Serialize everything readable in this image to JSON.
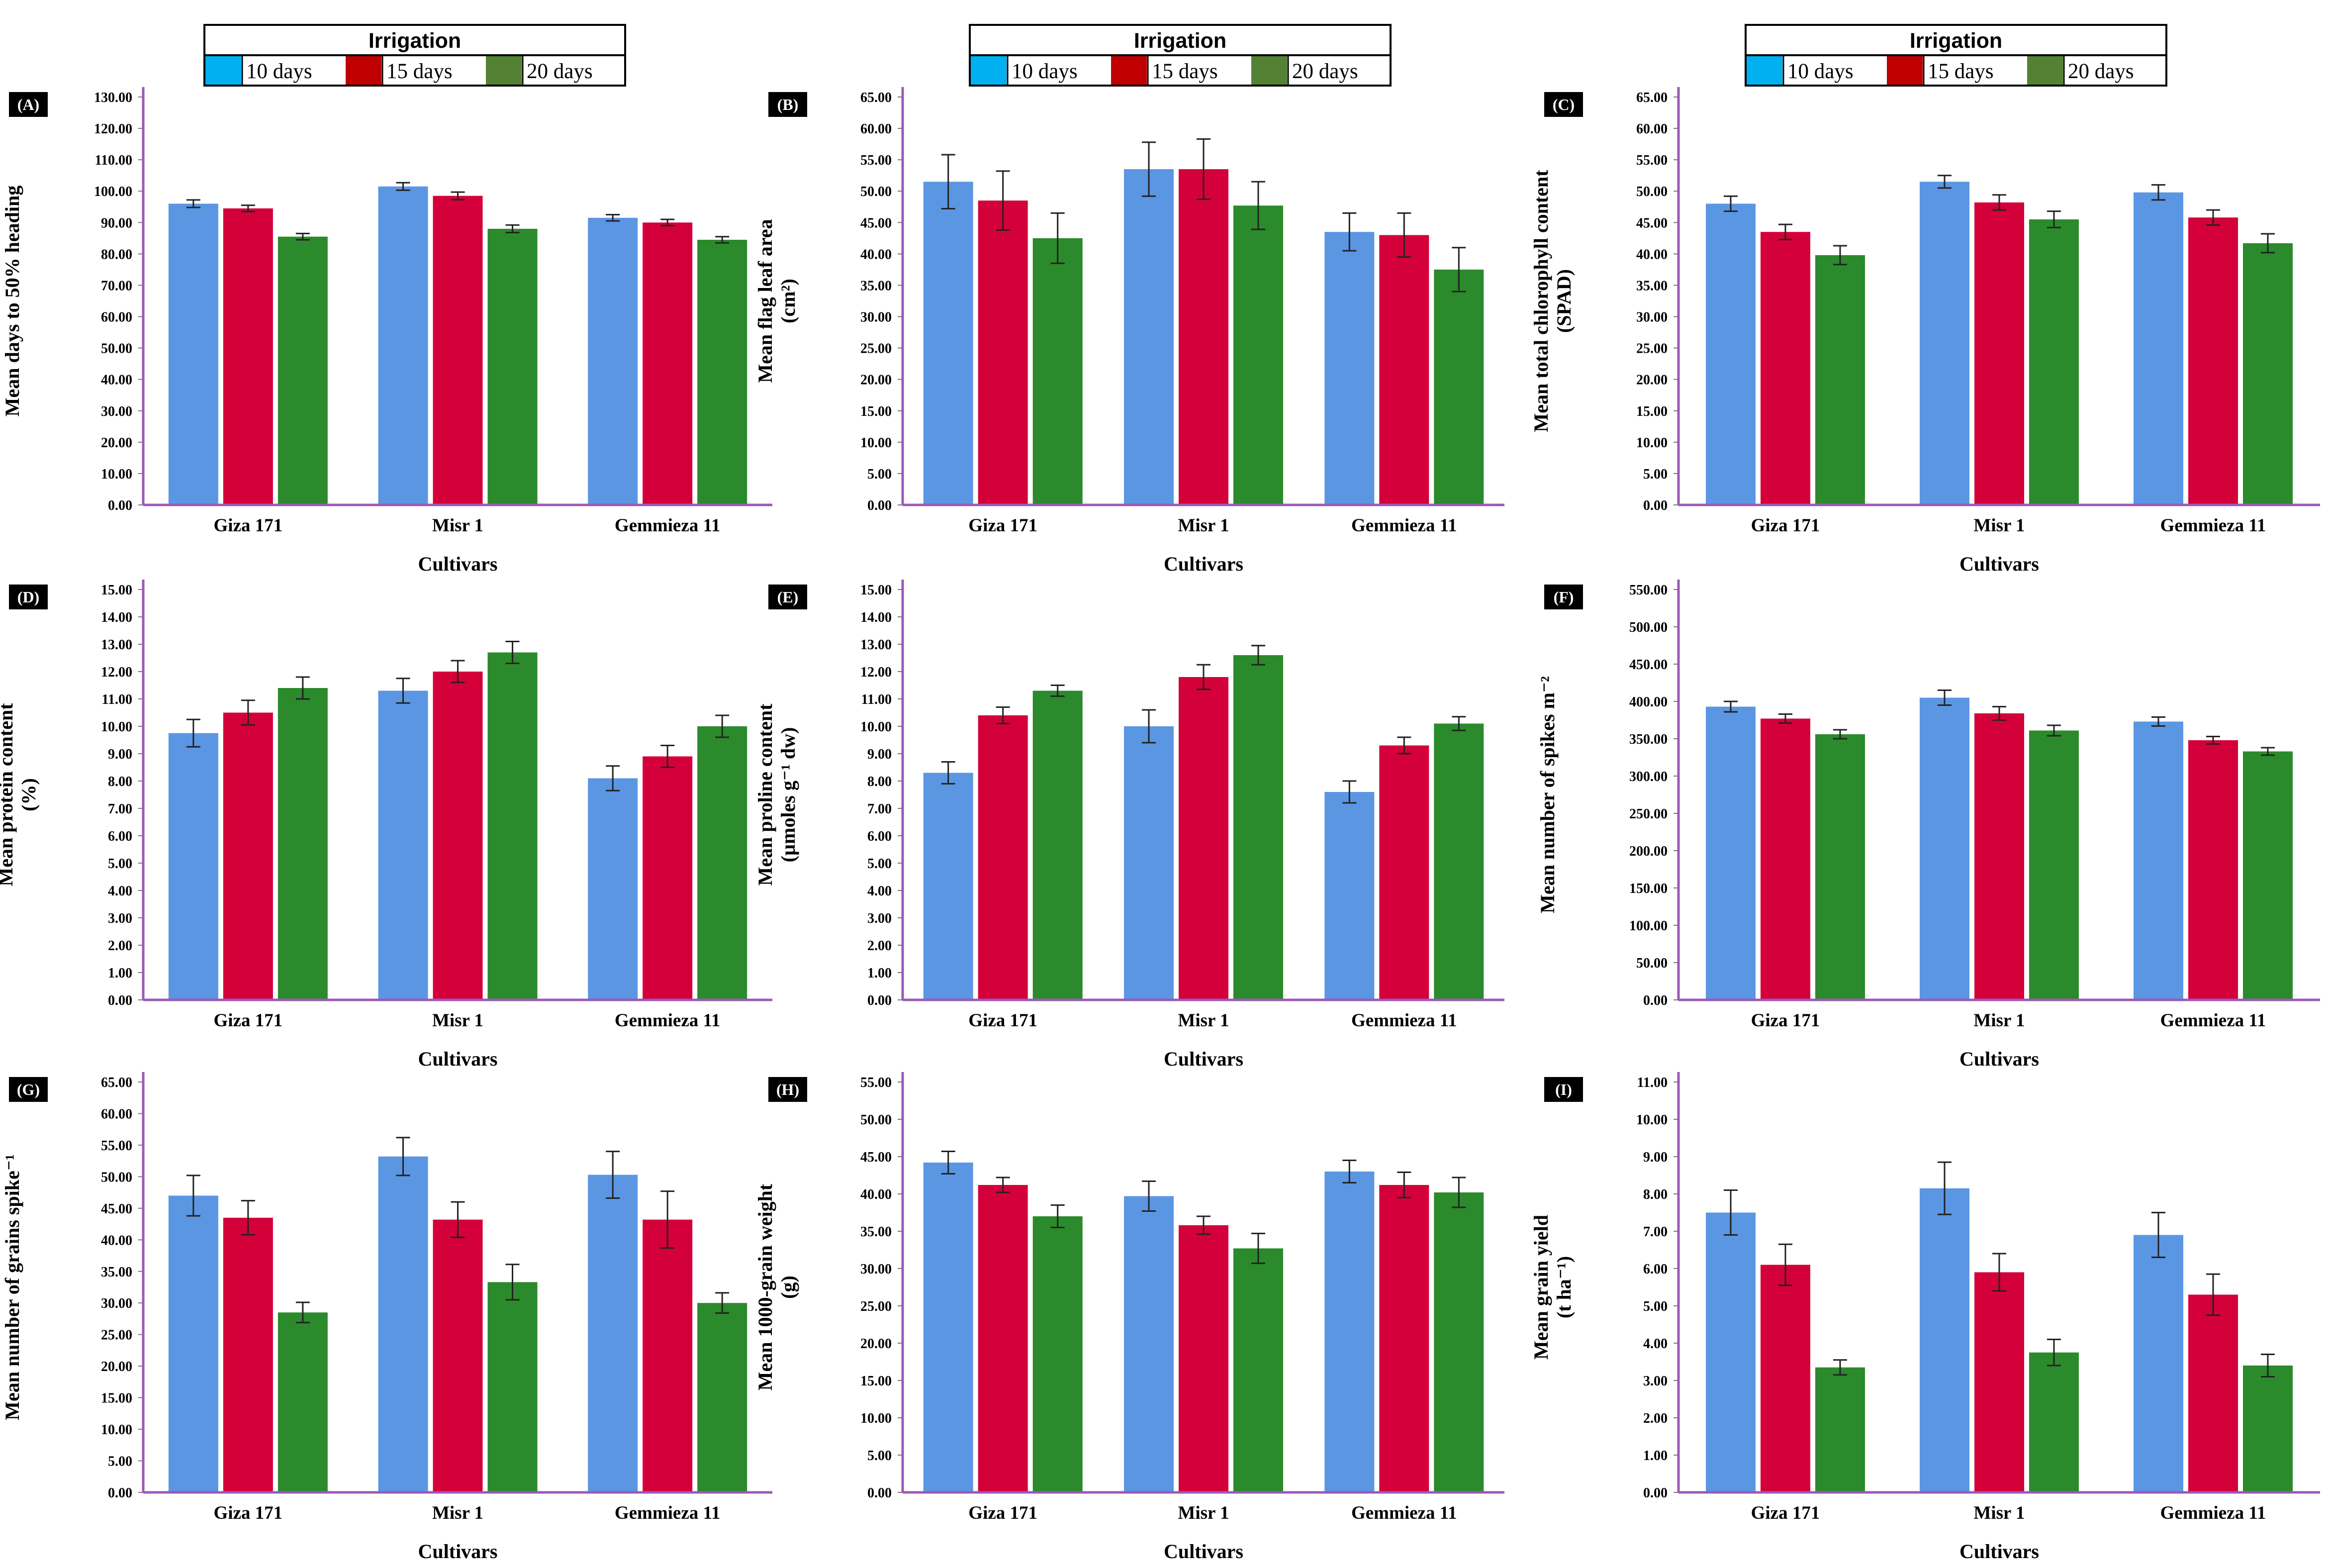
{
  "legend": {
    "title": "Irrigation",
    "items": [
      {
        "label": "10 days",
        "color": "#00b0f0"
      },
      {
        "label": "15 days",
        "color": "#c00000"
      },
      {
        "label": "20 days",
        "color": "#548235"
      }
    ]
  },
  "bar_colors": [
    "#5b96e3",
    "#d4003a",
    "#2b8a2b"
  ],
  "axis_color": "#9b59b6",
  "chart_data": [
    {
      "type": "bar",
      "panel": "(A)",
      "ylabel": [
        "Mean days to 50% heading"
      ],
      "xlabel": "Cultivars",
      "categories": [
        "Giza 171",
        "Misr 1",
        "Gemmieza 11"
      ],
      "ylim": [
        0,
        130
      ],
      "ystep": 10,
      "series": [
        {
          "name": "10 days",
          "values": [
            96.0,
            101.5,
            91.5
          ],
          "errors": [
            1.2,
            1.2,
            1.0
          ]
        },
        {
          "name": "15 days",
          "values": [
            94.5,
            98.5,
            90.0
          ],
          "errors": [
            1.0,
            1.2,
            1.0
          ]
        },
        {
          "name": "20 days",
          "values": [
            85.5,
            88.0,
            84.5
          ],
          "errors": [
            1.0,
            1.2,
            1.0
          ]
        }
      ]
    },
    {
      "type": "bar",
      "panel": "(B)",
      "ylabel": [
        "Mean flag leaf area",
        "(cm²)"
      ],
      "xlabel": "Cultivars",
      "categories": [
        "Giza 171",
        "Misr 1",
        "Gemmieza 11"
      ],
      "ylim": [
        0,
        65
      ],
      "ystep": 5,
      "series": [
        {
          "name": "10 days",
          "values": [
            51.5,
            53.5,
            43.5
          ],
          "errors": [
            4.3,
            4.3,
            3.0
          ]
        },
        {
          "name": "15 days",
          "values": [
            48.5,
            53.5,
            43.0
          ],
          "errors": [
            4.7,
            4.8,
            3.5
          ]
        },
        {
          "name": "20 days",
          "values": [
            42.5,
            47.7,
            37.5
          ],
          "errors": [
            4.0,
            3.8,
            3.5
          ]
        }
      ]
    },
    {
      "type": "bar",
      "panel": "(C)",
      "ylabel": [
        "Mean total chlorophyll content",
        "(SPAD)"
      ],
      "xlabel": "Cultivars",
      "categories": [
        "Giza 171",
        "Misr 1",
        "Gemmieza 11"
      ],
      "ylim": [
        0,
        65
      ],
      "ystep": 5,
      "series": [
        {
          "name": "10 days",
          "values": [
            48.0,
            51.5,
            49.8
          ],
          "errors": [
            1.2,
            1.0,
            1.2
          ]
        },
        {
          "name": "15 days",
          "values": [
            43.5,
            48.2,
            45.8
          ],
          "errors": [
            1.2,
            1.2,
            1.2
          ]
        },
        {
          "name": "20 days",
          "values": [
            39.8,
            45.5,
            41.7
          ],
          "errors": [
            1.5,
            1.3,
            1.5
          ]
        }
      ]
    },
    {
      "type": "bar",
      "panel": "(D)",
      "ylabel": [
        "Mean protein content",
        "(%)"
      ],
      "xlabel": "Cultivars",
      "categories": [
        "Giza 171",
        "Misr 1",
        "Gemmieza 11"
      ],
      "ylim": [
        0,
        15
      ],
      "ystep": 1,
      "series": [
        {
          "name": "10 days",
          "values": [
            9.75,
            11.3,
            8.1
          ],
          "errors": [
            0.5,
            0.45,
            0.45
          ]
        },
        {
          "name": "15 days",
          "values": [
            10.5,
            12.0,
            8.9
          ],
          "errors": [
            0.45,
            0.4,
            0.4
          ]
        },
        {
          "name": "20 days",
          "values": [
            11.4,
            12.7,
            10.0
          ],
          "errors": [
            0.4,
            0.4,
            0.4
          ]
        }
      ]
    },
    {
      "type": "bar",
      "panel": "(E)",
      "ylabel": [
        "Mean proline content",
        "(µmoles g⁻¹ dw)"
      ],
      "xlabel": "Cultivars",
      "categories": [
        "Giza 171",
        "Misr 1",
        "Gemmieza 11"
      ],
      "ylim": [
        0,
        15
      ],
      "ystep": 1,
      "series": [
        {
          "name": "10 days",
          "values": [
            8.3,
            10.0,
            7.6
          ],
          "errors": [
            0.4,
            0.6,
            0.4
          ]
        },
        {
          "name": "15 days",
          "values": [
            10.4,
            11.8,
            9.3
          ],
          "errors": [
            0.3,
            0.45,
            0.3
          ]
        },
        {
          "name": "20 days",
          "values": [
            11.3,
            12.6,
            10.1
          ],
          "errors": [
            0.2,
            0.35,
            0.25
          ]
        }
      ]
    },
    {
      "type": "bar",
      "panel": "(F)",
      "ylabel": [
        "Mean number of spikes m⁻²"
      ],
      "xlabel": "Cultivars",
      "categories": [
        "Giza 171",
        "Misr 1",
        "Gemmieza 11"
      ],
      "ylim": [
        0,
        550
      ],
      "ystep": 50,
      "series": [
        {
          "name": "10 days",
          "values": [
            393,
            405,
            373
          ],
          "errors": [
            7,
            10,
            6
          ]
        },
        {
          "name": "15 days",
          "values": [
            377,
            384,
            348
          ],
          "errors": [
            6,
            9,
            5
          ]
        },
        {
          "name": "20 days",
          "values": [
            356,
            361,
            333
          ],
          "errors": [
            6,
            7,
            5
          ]
        }
      ]
    },
    {
      "type": "bar",
      "panel": "(G)",
      "ylabel": [
        "Mean number  of grains spike⁻¹"
      ],
      "xlabel": "Cultivars",
      "categories": [
        "Giza 171",
        "Misr 1",
        "Gemmieza 11"
      ],
      "ylim": [
        0,
        65
      ],
      "ystep": 5,
      "series": [
        {
          "name": "10 days",
          "values": [
            47.0,
            53.2,
            50.3
          ],
          "errors": [
            3.2,
            3.0,
            3.7
          ]
        },
        {
          "name": "15 days",
          "values": [
            43.5,
            43.2,
            43.2
          ],
          "errors": [
            2.7,
            2.8,
            4.5
          ]
        },
        {
          "name": "20 days",
          "values": [
            28.5,
            33.3,
            30.0
          ],
          "errors": [
            1.6,
            2.8,
            1.6
          ]
        }
      ]
    },
    {
      "type": "bar",
      "panel": "(H)",
      "ylabel": [
        "Mean 1000-grain weight",
        "(g)"
      ],
      "xlabel": "Cultivars",
      "categories": [
        "Giza 171",
        "Misr 1",
        "Gemmieza 11"
      ],
      "ylim": [
        0,
        55
      ],
      "ystep": 5,
      "series": [
        {
          "name": "10 days",
          "values": [
            44.2,
            39.7,
            43.0
          ],
          "errors": [
            1.5,
            2.0,
            1.5
          ]
        },
        {
          "name": "15 days",
          "values": [
            41.2,
            35.8,
            41.2
          ],
          "errors": [
            1.0,
            1.2,
            1.7
          ]
        },
        {
          "name": "20 days",
          "values": [
            37.0,
            32.7,
            40.2
          ],
          "errors": [
            1.5,
            2.0,
            2.0
          ]
        }
      ]
    },
    {
      "type": "bar",
      "panel": "(I)",
      "ylabel": [
        "Mean grain yield",
        "(t ha⁻¹)"
      ],
      "xlabel": "Cultivars",
      "categories": [
        "Giza 171",
        "Misr 1",
        "Gemmieza 11"
      ],
      "ylim": [
        0,
        11
      ],
      "ystep": 1,
      "series": [
        {
          "name": "10 days",
          "values": [
            7.5,
            8.15,
            6.9
          ],
          "errors": [
            0.6,
            0.7,
            0.6
          ]
        },
        {
          "name": "15 days",
          "values": [
            6.1,
            5.9,
            5.3
          ],
          "errors": [
            0.55,
            0.5,
            0.55
          ]
        },
        {
          "name": "20 days",
          "values": [
            3.35,
            3.75,
            3.4
          ],
          "errors": [
            0.2,
            0.35,
            0.3
          ]
        }
      ]
    }
  ]
}
